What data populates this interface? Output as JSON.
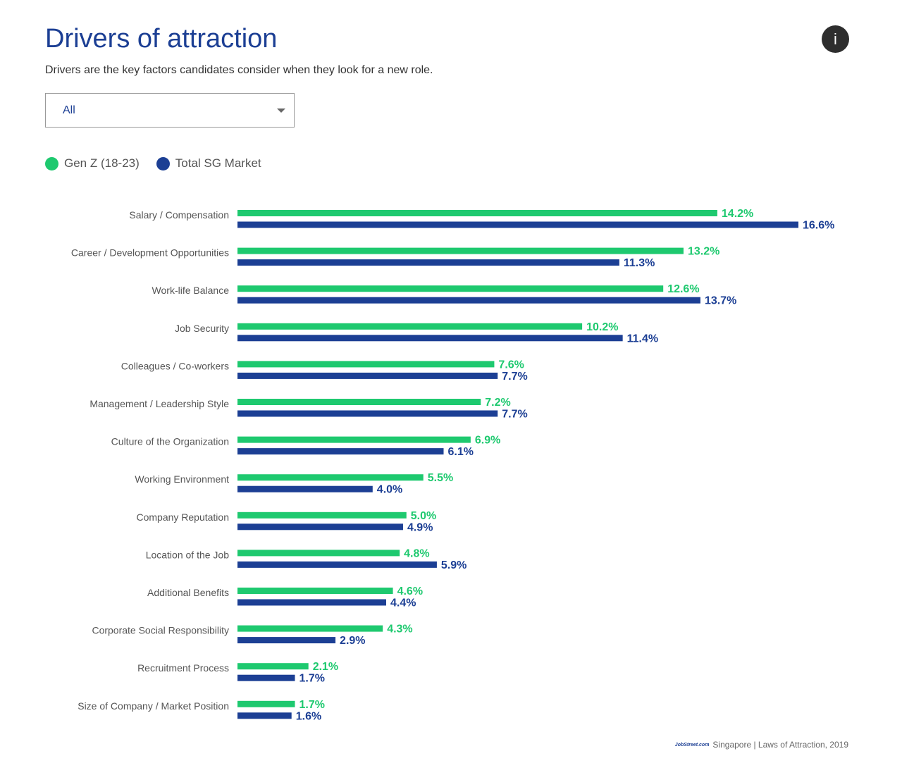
{
  "header": {
    "title": "Drivers of attraction",
    "subtitle": "Drivers are the key factors candidates consider when they look for a new role.",
    "info_icon_glyph": "i"
  },
  "filter": {
    "selected": "All"
  },
  "colors": {
    "genz": "#1ec96f",
    "total": "#1c3f94",
    "title": "#1c3f94"
  },
  "footer": {
    "logo": "JobStreet.com",
    "source": "Singapore | Laws of Attraction, 2019"
  },
  "chart_data": {
    "type": "bar",
    "orientation": "horizontal",
    "title": "Drivers of attraction",
    "xlabel": "",
    "ylabel": "",
    "xlim": [
      0,
      16.6
    ],
    "grid": false,
    "legend_position": "top-left",
    "value_format": "{v}%",
    "categories": [
      "Salary / Compensation",
      "Career / Development Opportunities",
      "Work-life Balance",
      "Job Security",
      "Colleagues / Co-workers",
      "Management / Leadership Style",
      "Culture of the Organization",
      "Working Environment",
      "Company Reputation",
      "Location of the Job",
      "Additional Benefits",
      "Corporate Social Responsibility",
      "Recruitment Process",
      "Size of Company / Market Position"
    ],
    "series": [
      {
        "name": "Gen Z (18-23)",
        "color": "#1ec96f",
        "values": [
          14.2,
          13.2,
          12.6,
          10.2,
          7.6,
          7.2,
          6.9,
          5.5,
          5.0,
          4.8,
          4.6,
          4.3,
          2.1,
          1.7
        ],
        "labels": [
          "14.2%",
          "13.2%",
          "12.6%",
          "10.2%",
          "7.6%",
          "7.2%",
          "6.9%",
          "5.5%",
          "5.0%",
          "4.8%",
          "4.6%",
          "4.3%",
          "2.1%",
          "1.7%"
        ]
      },
      {
        "name": "Total SG Market",
        "color": "#1c3f94",
        "values": [
          16.6,
          11.3,
          13.7,
          11.4,
          7.7,
          7.7,
          6.1,
          4.0,
          4.9,
          5.9,
          4.4,
          2.9,
          1.7,
          1.6
        ],
        "labels": [
          "16.6%",
          "11.3%",
          "13.7%",
          "11.4%",
          "7.7%",
          "7.7%",
          "6.1%",
          "4.0%",
          "4.9%",
          "5.9%",
          "4.4%",
          "2.9%",
          "1.7%",
          "1.6%"
        ]
      }
    ]
  }
}
